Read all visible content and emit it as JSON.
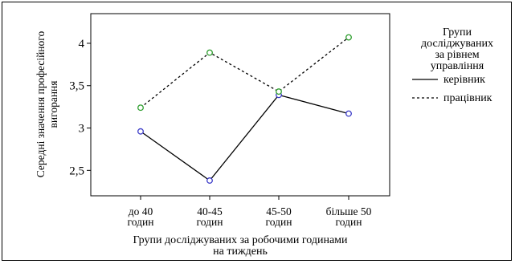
{
  "chart_data": {
    "type": "line",
    "title": "",
    "xlabel": "Групи досліджуваних  за робочими годинами на тиждень",
    "xlabel_lines": [
      "Групи досліджуваних  за робочими годинами",
      "на тиждень"
    ],
    "ylabel": "Середні значення професійного вигорання",
    "ylabel_lines": [
      "Середні значення професійного",
      "вигорання"
    ],
    "categories": [
      "до 40 годин",
      "40-45 годин",
      "45-50 годин",
      "більше 50 годин"
    ],
    "category_lines": [
      [
        "до 40",
        "годин"
      ],
      [
        "40-45",
        "годин"
      ],
      [
        "45-50",
        "годин"
      ],
      [
        "більше 50",
        "годин"
      ]
    ],
    "ylim": [
      2.2,
      4.35
    ],
    "yticks": [
      2.5,
      3,
      3.5,
      4
    ],
    "ytick_labels": [
      "2,5",
      "3",
      "3,5",
      "4"
    ],
    "grid": false,
    "legend_position": "right",
    "legend_title": "Групи досліджуваних за рівнем управління",
    "legend_title_lines": [
      "Групи",
      "досліджуваних",
      "за рівнем",
      "управління"
    ],
    "series": [
      {
        "name": "керівник",
        "values": [
          2.96,
          2.38,
          3.39,
          3.17
        ],
        "line_style": "solid",
        "marker_color": "#3b3bc8"
      },
      {
        "name": "працівник",
        "values": [
          3.24,
          3.89,
          3.43,
          4.07
        ],
        "line_style": "dashed",
        "marker_color": "#2e9e2e"
      }
    ]
  }
}
